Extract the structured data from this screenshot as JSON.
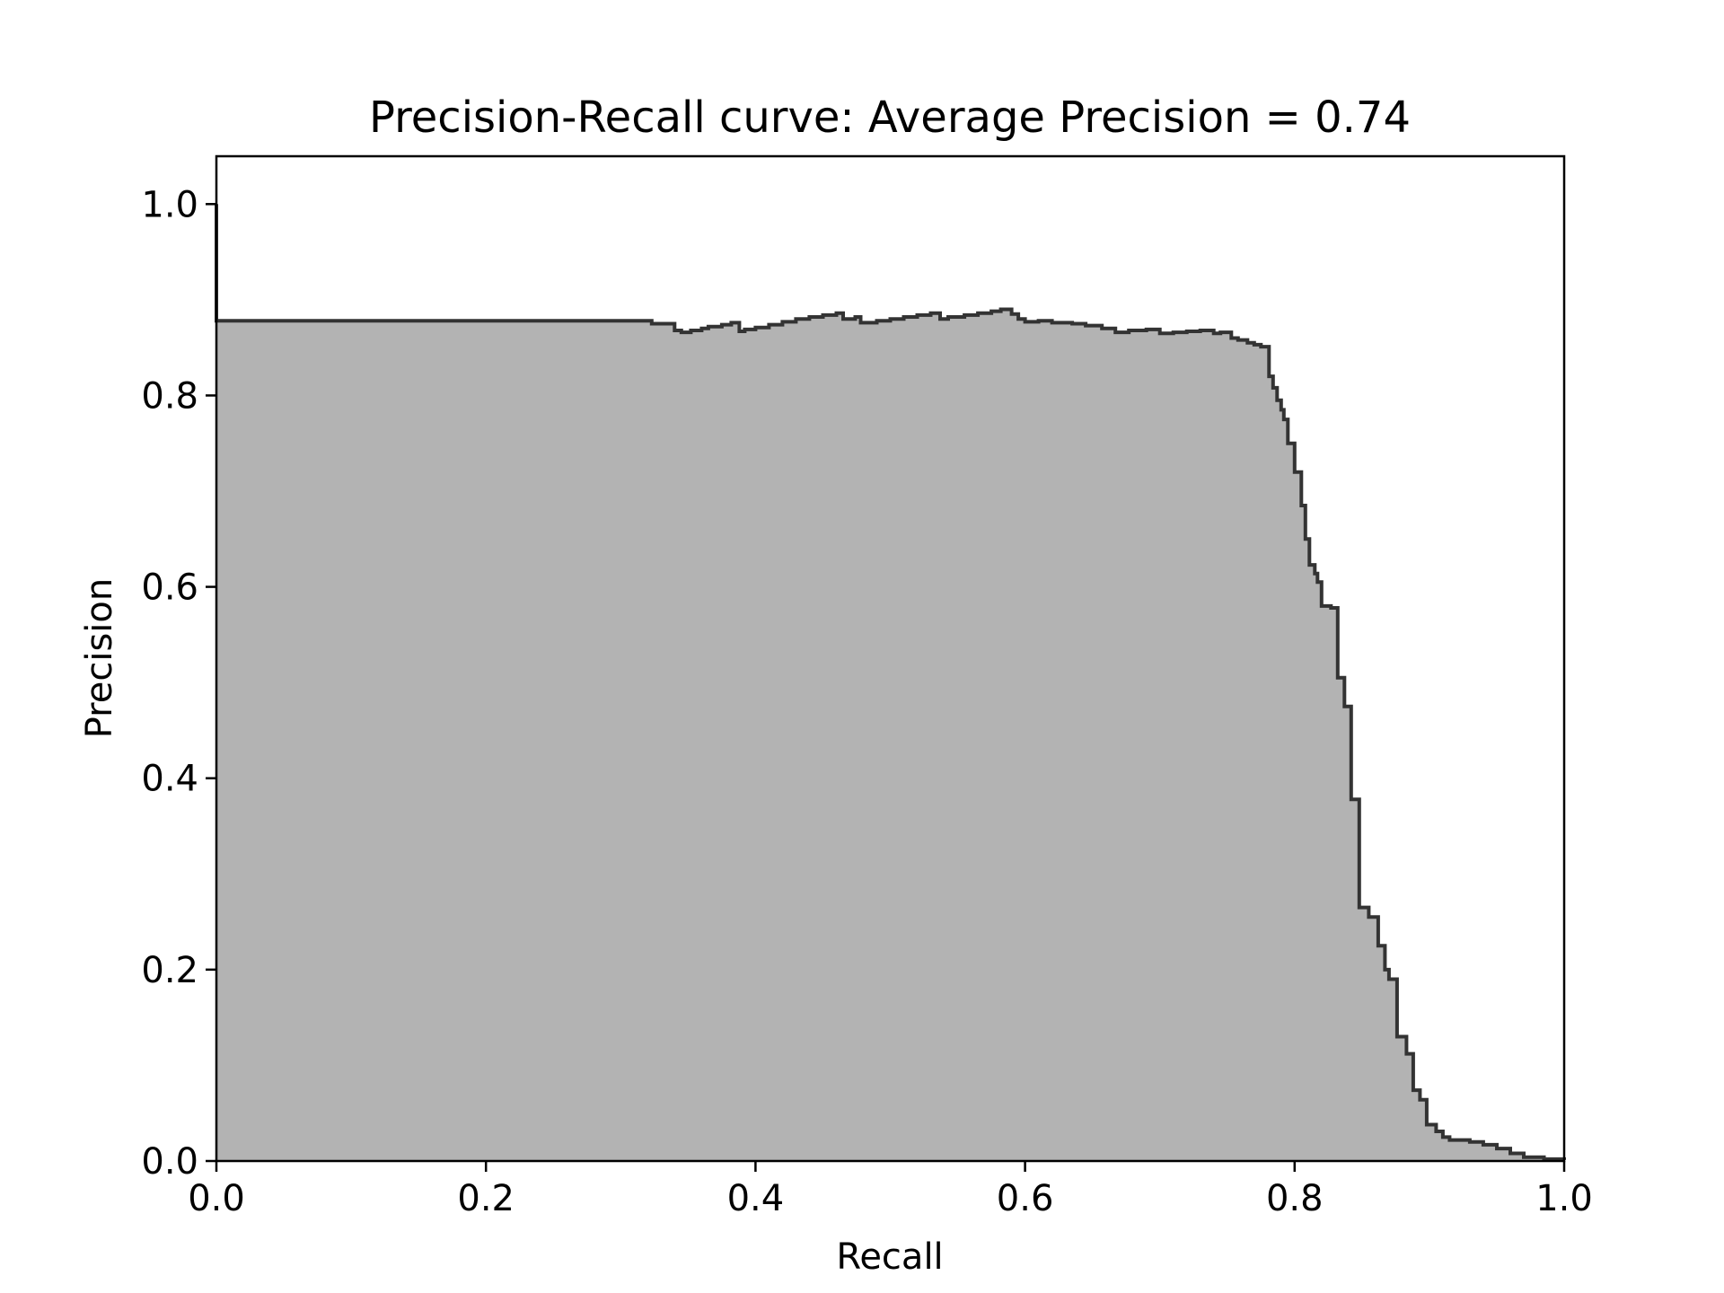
{
  "chart_data": {
    "type": "area",
    "title": "Precision-Recall curve: Average Precision = 0.74",
    "xlabel": "Recall",
    "ylabel": "Precision",
    "xlim": [
      0.0,
      1.0
    ],
    "ylim": [
      0.0,
      1.05
    ],
    "xticks": [
      0.0,
      0.2,
      0.4,
      0.6,
      0.8,
      1.0
    ],
    "yticks": [
      0.0,
      0.2,
      0.4,
      0.6,
      0.8,
      1.0
    ],
    "tick_labels_x": [
      "0.0",
      "0.2",
      "0.4",
      "0.6",
      "0.8",
      "1.0"
    ],
    "tick_labels_y": [
      "0.0",
      "0.2",
      "0.4",
      "0.6",
      "0.8",
      "1.0"
    ],
    "grid": false,
    "step": "post",
    "colors": {
      "fill": "#b3b3b3",
      "line": "#333333"
    },
    "series": [
      {
        "x": [
          0.0,
          0.0,
          0.323,
          0.34,
          0.345,
          0.352,
          0.36,
          0.365,
          0.375,
          0.382,
          0.388,
          0.392,
          0.4,
          0.41,
          0.42,
          0.43,
          0.44,
          0.45,
          0.46,
          0.465,
          0.474,
          0.478,
          0.49,
          0.5,
          0.51,
          0.52,
          0.53,
          0.537,
          0.543,
          0.555,
          0.565,
          0.575,
          0.582,
          0.59,
          0.595,
          0.6,
          0.61,
          0.62,
          0.635,
          0.645,
          0.657,
          0.667,
          0.677,
          0.69,
          0.7,
          0.71,
          0.72,
          0.73,
          0.74,
          0.745,
          0.753,
          0.758,
          0.765,
          0.77,
          0.775,
          0.781,
          0.784,
          0.787,
          0.79,
          0.792,
          0.795,
          0.8,
          0.805,
          0.808,
          0.811,
          0.815,
          0.817,
          0.82,
          0.827,
          0.832,
          0.837,
          0.842,
          0.848,
          0.855,
          0.862,
          0.867,
          0.87,
          0.876,
          0.883,
          0.888,
          0.893,
          0.898,
          0.905,
          0.91,
          0.915,
          0.93,
          0.94,
          0.95,
          0.96,
          0.97,
          0.985,
          1.0
        ],
        "y": [
          1.0,
          0.878,
          0.875,
          0.868,
          0.866,
          0.868,
          0.87,
          0.872,
          0.874,
          0.876,
          0.867,
          0.869,
          0.871,
          0.874,
          0.877,
          0.88,
          0.882,
          0.884,
          0.886,
          0.88,
          0.882,
          0.876,
          0.878,
          0.88,
          0.882,
          0.884,
          0.886,
          0.88,
          0.882,
          0.884,
          0.886,
          0.888,
          0.89,
          0.885,
          0.88,
          0.877,
          0.878,
          0.876,
          0.875,
          0.873,
          0.87,
          0.866,
          0.868,
          0.869,
          0.865,
          0.866,
          0.867,
          0.868,
          0.865,
          0.866,
          0.86,
          0.858,
          0.855,
          0.853,
          0.851,
          0.82,
          0.808,
          0.795,
          0.785,
          0.775,
          0.75,
          0.72,
          0.685,
          0.65,
          0.623,
          0.614,
          0.605,
          0.58,
          0.578,
          0.505,
          0.475,
          0.378,
          0.265,
          0.255,
          0.225,
          0.2,
          0.19,
          0.13,
          0.112,
          0.074,
          0.064,
          0.038,
          0.031,
          0.025,
          0.022,
          0.02,
          0.017,
          0.013,
          0.008,
          0.004,
          0.002,
          0.001
        ]
      }
    ]
  }
}
